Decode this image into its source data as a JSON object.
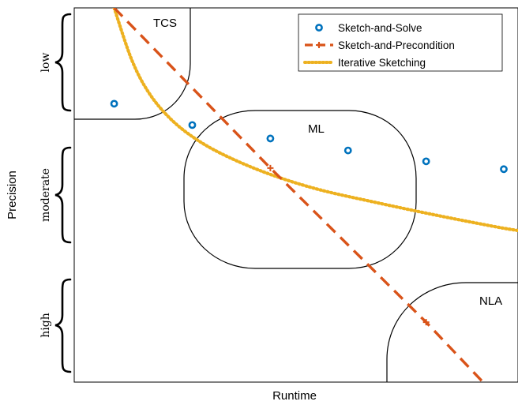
{
  "chart_data": {
    "type": "scatter",
    "xlabel": "Runtime",
    "ylabel": "Precision",
    "xlim": [
      0,
      1
    ],
    "ylim": [
      0,
      1
    ],
    "grid": false,
    "legend_position": "top-right",
    "precision_levels": [
      "low",
      "moderate",
      "high"
    ],
    "regions": [
      {
        "name": "TCS"
      },
      {
        "name": "ML"
      },
      {
        "name": "NLA"
      }
    ],
    "series": [
      {
        "name": "Sketch-and-Solve",
        "style": "markers",
        "color": "#0072BD",
        "points": [
          [
            0.09,
            0.744
          ],
          [
            0.266,
            0.687
          ],
          [
            0.442,
            0.651
          ],
          [
            0.617,
            0.619
          ],
          [
            0.793,
            0.59
          ],
          [
            0.968,
            0.569
          ]
        ]
      },
      {
        "name": "Sketch-and-Precondition",
        "style": "dashed",
        "color": "#D95319",
        "points": [
          [
            0.09,
            1.0
          ],
          [
            0.442,
            0.572
          ],
          [
            0.793,
            0.16
          ],
          [
            0.945,
            -0.03
          ]
        ]
      },
      {
        "name": "Iterative Sketching",
        "style": "dotted",
        "color": "#EDB120",
        "points": [
          [
            0.09,
            1.0
          ],
          [
            0.13,
            0.86
          ],
          [
            0.17,
            0.77
          ],
          [
            0.22,
            0.7
          ],
          [
            0.28,
            0.645
          ],
          [
            0.35,
            0.6
          ],
          [
            0.442,
            0.555
          ],
          [
            0.55,
            0.515
          ],
          [
            0.68,
            0.48
          ],
          [
            0.82,
            0.445
          ],
          [
            0.95,
            0.415
          ],
          [
            1.0,
            0.405
          ]
        ]
      }
    ]
  }
}
